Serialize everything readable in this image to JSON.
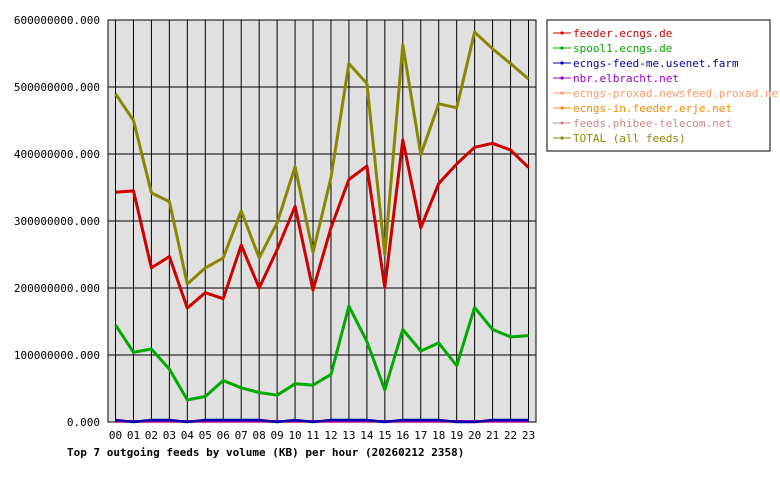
{
  "chart_data": {
    "type": "line",
    "title": "Top 7 outgoing feeds by volume (KB) per hour (20260212 2358)",
    "x": [
      "00",
      "01",
      "02",
      "03",
      "04",
      "05",
      "06",
      "07",
      "08",
      "09",
      "10",
      "11",
      "12",
      "13",
      "14",
      "15",
      "16",
      "17",
      "18",
      "19",
      "20",
      "21",
      "22",
      "23"
    ],
    "y_ticks": [
      "0.000",
      "100000000.000",
      "200000000.000",
      "300000000.000",
      "400000000.000",
      "500000000.000",
      "600000000.000"
    ],
    "ylim": [
      0,
      600000000
    ],
    "grid": true,
    "legend_position": "right",
    "series": [
      {
        "name": "feeder.ecngs.de",
        "color": "#cc0000",
        "values": [
          343000000,
          345000000,
          230000000,
          247000000,
          170000000,
          193000000,
          184000000,
          264000000,
          200000000,
          257000000,
          322000000,
          197000000,
          290000000,
          362000000,
          382000000,
          201000000,
          421000000,
          290000000,
          356000000,
          385000000,
          410000000,
          416000000,
          406000000,
          380000000
        ]
      },
      {
        "name": "spool1.ecngs.de",
        "color": "#00aa00",
        "values": [
          145000000,
          104000000,
          109000000,
          79000000,
          33000000,
          38000000,
          62000000,
          51000000,
          44000000,
          40000000,
          57000000,
          55000000,
          71000000,
          173000000,
          120000000,
          48000000,
          138000000,
          106000000,
          118000000,
          84000000,
          171000000,
          138000000,
          127000000,
          129000000
        ]
      },
      {
        "name": "ecngs-feed-me.usenet.farm",
        "color": "#0000aa",
        "values": [
          3000000,
          0,
          3000000,
          3000000,
          0,
          3000000,
          3000000,
          3000000,
          3000000,
          0,
          3000000,
          0,
          3000000,
          3000000,
          3000000,
          0,
          3000000,
          3000000,
          3000000,
          0,
          0,
          3000000,
          3000000,
          3000000
        ]
      },
      {
        "name": "nbr.elbracht.net",
        "color": "#9900cc",
        "values": [
          1000000,
          1000000,
          1000000,
          1000000,
          1000000,
          1000000,
          1000000,
          1000000,
          1000000,
          1000000,
          1000000,
          1000000,
          1000000,
          1000000,
          1000000,
          1000000,
          1000000,
          1000000,
          1000000,
          1000000,
          1000000,
          1000000,
          1000000,
          1000000
        ]
      },
      {
        "name": "ecngs-proxad.newsfeed.proxad.net",
        "color": "#ff9966",
        "values": [
          500000,
          500000,
          500000,
          500000,
          500000,
          500000,
          500000,
          500000,
          500000,
          500000,
          500000,
          500000,
          500000,
          500000,
          500000,
          500000,
          500000,
          500000,
          500000,
          500000,
          500000,
          500000,
          500000,
          500000
        ]
      },
      {
        "name": "ecngs-in.feeder.erje.net",
        "color": "#ff8800",
        "values": [
          300000,
          300000,
          300000,
          300000,
          300000,
          300000,
          300000,
          300000,
          300000,
          300000,
          300000,
          300000,
          300000,
          300000,
          300000,
          300000,
          300000,
          300000,
          300000,
          300000,
          300000,
          300000,
          300000,
          300000
        ]
      },
      {
        "name": "feeds.phibee-telecom.net",
        "color": "#cc8888",
        "values": [
          200000,
          200000,
          200000,
          200000,
          200000,
          200000,
          200000,
          200000,
          200000,
          200000,
          200000,
          200000,
          200000,
          200000,
          200000,
          200000,
          200000,
          200000,
          200000,
          200000,
          200000,
          200000,
          200000,
          200000
        ]
      },
      {
        "name": "TOTAL (all feeds)",
        "color": "#888800",
        "values": [
          490000000,
          450000000,
          342000000,
          329000000,
          206000000,
          230000000,
          245000000,
          315000000,
          245000000,
          297000000,
          381000000,
          253000000,
          365000000,
          535000000,
          505000000,
          250000000,
          563000000,
          399000000,
          475000000,
          469000000,
          582000000,
          557000000,
          535000000,
          512000000
        ]
      }
    ]
  }
}
